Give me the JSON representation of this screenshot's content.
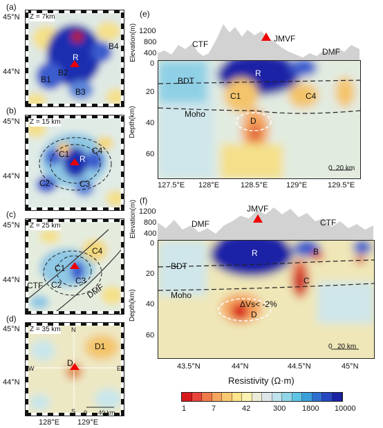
{
  "maps": [
    {
      "id": "a",
      "label": "(a)",
      "depth": "Z = 7km",
      "labels": {
        "r": "R",
        "b1": "B1",
        "b2": "B2",
        "b3": "B3",
        "b4": "B4"
      }
    },
    {
      "id": "b",
      "label": "(b)",
      "depth": "Z = 15 km",
      "labels": {
        "r": "R",
        "c1": "C1",
        "c2": "C2",
        "c3": "C3",
        "c4": "C4"
      }
    },
    {
      "id": "c",
      "label": "(c)",
      "depth": "Z = 25 km",
      "labels": {
        "c1": "C1",
        "c2": "C2",
        "c3": "C3",
        "c4": "C4",
        "ctf": "CTF",
        "dmf": "DMF"
      }
    },
    {
      "id": "d",
      "label": "(d)",
      "depth": "Z = 35 km",
      "labels": {
        "d": "D",
        "d1": "D1",
        "n": "N",
        "s": "S",
        "w": "W",
        "e": "E",
        "scale": "40 km",
        "scale0": "0"
      }
    }
  ],
  "map_lat_ticks": [
    "45°N",
    "44°N"
  ],
  "map_lon_ticks": [
    "128°E",
    "129°E"
  ],
  "section_e": {
    "label": "(e)",
    "elev_ylabel": "Elevation(m)",
    "elev_ticks": [
      "1200",
      "800",
      "400"
    ],
    "ylabel": "Depth(km)",
    "depth_ticks": [
      "0",
      "20",
      "40",
      "60"
    ],
    "x_ticks": [
      "127.5°E",
      "128°E",
      "128.5°E",
      "129°E",
      "129.5°E"
    ],
    "ann": {
      "ctf": "CTF",
      "jmvf": "JMVF",
      "dmf": "DMF",
      "r": "R",
      "bdt": "BDT",
      "c1": "C1",
      "c4": "C4",
      "moho": "Moho",
      "d": "D"
    },
    "scale0": "0",
    "scale": "20 km"
  },
  "section_f": {
    "label": "(f)",
    "elev_ylabel": "Elevation(m)",
    "elev_ticks": [
      "1200",
      "800",
      "400"
    ],
    "ylabel": "Depth(km)",
    "depth_ticks": [
      "0",
      "20",
      "40",
      "60"
    ],
    "x_ticks": [
      "43.5°N",
      "44°N",
      "44.5°N",
      "45°N"
    ],
    "ann": {
      "dmf": "DMF",
      "jmvf": "JMVF",
      "ctf": "CTF",
      "r": "R",
      "b": "B",
      "bdt": "BDT",
      "c": "C",
      "moho": "Moho",
      "dvs": "ΔVs< -2%",
      "d": "D"
    },
    "scale0": "0",
    "scale": "20 km"
  },
  "colorbar": {
    "title": "Resistivity  (Ω·m)",
    "ticks": [
      "1",
      "7",
      "42",
      "300",
      "1800",
      "10000"
    ],
    "colors": [
      "#d7191c",
      "#e8443a",
      "#f07a4a",
      "#f5a65e",
      "#f9c971",
      "#fbe489",
      "#fbf1b0",
      "#ecebd5",
      "#dfe6e9",
      "#bfe3ec",
      "#8fd6e8",
      "#5fc4e6",
      "#3aa0dc",
      "#2f6fd0",
      "#2646c2",
      "#1a22a6"
    ]
  }
}
